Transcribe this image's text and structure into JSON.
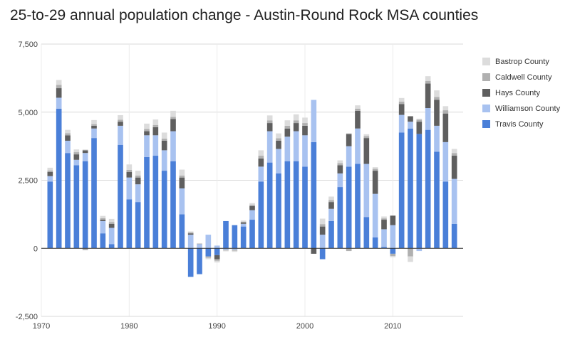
{
  "chart_data": {
    "type": "bar",
    "stacked": true,
    "title": "25-to-29 annual population change - Austin-Round Rock MSA counties",
    "xlabel": "",
    "ylabel": "",
    "ylim": [
      -2500,
      7500
    ],
    "xlim": [
      1970,
      2018
    ],
    "y_ticks": [
      -2500,
      0,
      2500,
      5000,
      7500
    ],
    "y_tick_labels": [
      "-2,500",
      "0",
      "2,500",
      "5,000",
      "7,500"
    ],
    "x_ticks": [
      1970,
      1980,
      1990,
      2000,
      2010
    ],
    "x_tick_labels": [
      "1970",
      "1980",
      "1990",
      "2000",
      "2010"
    ],
    "grid": true,
    "legend_position": "right",
    "x": [
      1971,
      1972,
      1973,
      1974,
      1975,
      1976,
      1977,
      1978,
      1979,
      1980,
      1981,
      1982,
      1983,
      1984,
      1985,
      1986,
      1987,
      1988,
      1989,
      1990,
      1991,
      1992,
      1993,
      1994,
      1995,
      1996,
      1997,
      1998,
      1999,
      2000,
      2001,
      2002,
      2003,
      2004,
      2005,
      2006,
      2007,
      2008,
      2009,
      2010,
      2011,
      2012,
      2013,
      2014,
      2015,
      2016,
      2017
    ],
    "series": [
      {
        "name": "Travis County",
        "color": "#4a7fd8",
        "values": [
          2450,
          5130,
          3500,
          3050,
          3200,
          4050,
          550,
          150,
          3800,
          1800,
          1700,
          3350,
          3400,
          2850,
          3200,
          1250,
          -1050,
          -950,
          -300,
          -250,
          1000,
          850,
          800,
          1050,
          2450,
          3150,
          2750,
          3200,
          3200,
          3000,
          3900,
          -400,
          1000,
          2250,
          3000,
          3100,
          1150,
          400,
          50,
          -200,
          4250,
          4400,
          4200,
          4350,
          3550,
          2450,
          900
        ]
      },
      {
        "name": "Williamson County",
        "color": "#a8c2f0",
        "values": [
          200,
          400,
          450,
          200,
          300,
          350,
          450,
          600,
          700,
          800,
          650,
          800,
          750,
          750,
          1100,
          950,
          500,
          150,
          500,
          100,
          -50,
          -50,
          100,
          350,
          550,
          1150,
          900,
          900,
          1100,
          1150,
          1550,
          500,
          450,
          500,
          750,
          1300,
          1950,
          1600,
          650,
          850,
          650,
          250,
          -100,
          800,
          950,
          1450,
          1650
        ]
      },
      {
        "name": "Hays County",
        "color": "#5f5f5f",
        "values": [
          150,
          350,
          200,
          200,
          100,
          100,
          50,
          150,
          150,
          200,
          250,
          150,
          300,
          350,
          450,
          400,
          50,
          0,
          0,
          -150,
          0,
          0,
          50,
          150,
          300,
          300,
          300,
          300,
          300,
          350,
          -200,
          300,
          250,
          300,
          450,
          650,
          950,
          850,
          350,
          350,
          400,
          200,
          450,
          900,
          950,
          1050,
          850
        ]
      },
      {
        "name": "Caldwell County",
        "color": "#b0b0b0",
        "values": [
          60,
          120,
          80,
          80,
          -70,
          60,
          60,
          60,
          70,
          80,
          70,
          80,
          80,
          80,
          80,
          70,
          30,
          20,
          -50,
          -60,
          -30,
          -40,
          30,
          50,
          100,
          100,
          90,
          100,
          100,
          100,
          0,
          90,
          70,
          80,
          -100,
          80,
          70,
          70,
          50,
          -80,
          90,
          -300,
          70,
          100,
          110,
          120,
          100
        ]
      },
      {
        "name": "Bastrop County",
        "color": "#dcdcdc",
        "values": [
          100,
          180,
          120,
          100,
          30,
          150,
          80,
          120,
          170,
          200,
          180,
          200,
          200,
          220,
          220,
          220,
          40,
          20,
          -50,
          -60,
          -30,
          -40,
          40,
          60,
          200,
          180,
          180,
          200,
          220,
          200,
          0,
          200,
          130,
          100,
          30,
          120,
          70,
          60,
          70,
          -50,
          130,
          -200,
          40,
          170,
          240,
          150,
          150
        ]
      }
    ]
  }
}
